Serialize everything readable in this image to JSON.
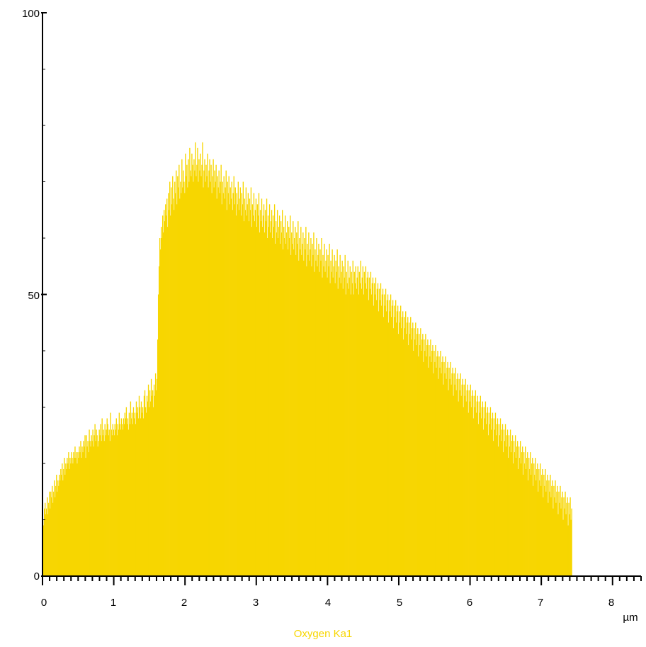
{
  "chart_data": {
    "type": "bar",
    "title": "",
    "xlabel": "µm",
    "ylabel": "",
    "xlim": [
      0,
      8.4
    ],
    "ylim": [
      0,
      100
    ],
    "grid": false,
    "legend_position": "bottom-center",
    "x_tick_labels": [
      "0",
      "1",
      "2",
      "3",
      "4",
      "5",
      "6",
      "7",
      "8"
    ],
    "y_tick_labels": [
      "0",
      "50",
      "100"
    ],
    "x_unit_label": "µm",
    "series": [
      {
        "name": "Oxygen Ka1",
        "color": "#F7D600",
        "x_step": 0.01,
        "values": [
          10,
          9,
          12,
          13,
          11,
          12,
          14,
          11,
          13,
          15,
          12,
          15,
          14,
          16,
          13,
          15,
          17,
          14,
          16,
          18,
          15,
          17,
          16,
          18,
          17,
          19,
          18,
          20,
          17,
          19,
          21,
          18,
          20,
          19,
          21,
          20,
          22,
          19,
          21,
          20,
          22,
          21,
          20,
          22,
          21,
          23,
          21,
          22,
          20,
          22,
          21,
          23,
          22,
          24,
          21,
          23,
          22,
          24,
          23,
          25,
          21,
          25,
          23,
          24,
          22,
          26,
          24,
          23,
          25,
          24,
          26,
          23,
          25,
          27,
          24,
          26,
          25,
          23,
          24,
          26,
          25,
          27,
          24,
          28,
          25,
          26,
          24,
          27,
          25,
          26,
          28,
          27,
          25,
          26,
          24,
          29,
          26,
          25,
          27,
          26,
          25,
          27,
          26,
          28,
          25,
          27,
          26,
          29,
          27,
          26,
          28,
          27,
          26,
          28,
          27,
          29,
          28,
          30,
          27,
          28,
          26,
          29,
          27,
          31,
          28,
          29,
          27,
          30,
          28,
          29,
          27,
          31,
          29,
          30,
          28,
          32,
          30,
          28,
          31,
          29,
          30,
          28,
          32,
          33,
          30,
          29,
          32,
          31,
          34,
          30,
          33,
          31,
          35,
          32,
          33,
          30,
          34,
          32,
          36,
          33,
          35,
          42,
          50,
          55,
          60,
          58,
          62,
          60,
          64,
          61,
          65,
          63,
          66,
          64,
          67,
          62,
          68,
          65,
          70,
          64,
          69,
          66,
          71,
          67,
          65,
          70,
          68,
          72,
          66,
          71,
          69,
          73,
          67,
          70,
          68,
          74,
          69,
          72,
          70,
          68,
          75,
          71,
          73,
          69,
          74,
          70,
          76,
          72,
          71,
          75,
          73,
          70,
          74,
          72,
          77,
          71,
          73,
          76,
          70,
          74,
          72,
          75,
          71,
          73,
          77,
          69,
          72,
          74,
          70,
          73,
          71,
          75,
          69,
          72,
          74,
          70,
          73,
          68,
          71,
          74,
          69,
          72,
          70,
          73,
          67,
          71,
          69,
          72,
          68,
          70,
          73,
          66,
          70,
          68,
          71,
          67,
          69,
          72,
          65,
          70,
          68,
          71,
          66,
          69,
          67,
          70,
          65,
          68,
          71,
          66,
          69,
          64,
          68,
          66,
          70,
          65,
          67,
          69,
          64,
          68,
          66,
          70,
          63,
          67,
          65,
          69,
          64,
          66,
          68,
          63,
          67,
          65,
          69,
          62,
          66,
          64,
          68,
          63,
          65,
          67,
          62,
          66,
          64,
          68,
          61,
          65,
          63,
          67,
          62,
          64,
          66,
          61,
          65,
          63,
          67,
          60,
          64,
          62,
          66,
          61,
          63,
          65,
          60,
          64,
          62,
          66,
          59,
          63,
          61,
          65,
          60,
          62,
          64,
          59,
          63,
          61,
          65,
          58,
          62,
          60,
          64,
          59,
          61,
          63,
          58,
          62,
          60,
          64,
          57,
          61,
          59,
          63,
          58,
          60,
          62,
          57,
          61,
          59,
          63,
          56,
          60,
          58,
          62,
          57,
          59,
          61,
          56,
          60,
          58,
          62,
          55,
          59,
          57,
          61,
          56,
          58,
          60,
          55,
          59,
          57,
          61,
          54,
          58,
          56,
          60,
          55,
          57,
          59,
          54,
          58,
          56,
          60,
          53,
          57,
          55,
          59,
          54,
          56,
          58,
          53,
          57,
          55,
          59,
          52,
          56,
          54,
          58,
          53,
          55,
          57,
          52,
          56,
          54,
          58,
          51,
          55,
          53,
          57,
          52,
          54,
          56,
          51,
          55,
          53,
          57,
          50,
          54,
          52,
          56,
          51,
          53,
          55,
          50,
          54,
          52,
          56,
          50,
          54,
          52,
          55,
          51,
          53,
          55,
          50,
          54,
          52,
          56,
          51,
          53,
          55,
          50,
          54,
          52,
          55,
          51,
          53,
          54,
          49,
          53,
          51,
          54,
          50,
          52,
          53,
          48,
          52,
          50,
          53,
          49,
          51,
          52,
          47,
          51,
          49,
          52,
          48,
          50,
          51,
          46,
          50,
          48,
          51,
          47,
          49,
          50,
          45,
          49,
          47,
          50,
          46,
          48,
          49,
          44,
          48,
          46,
          49,
          45,
          47,
          48,
          43,
          47,
          45,
          48,
          44,
          46,
          47,
          42,
          46,
          44,
          47,
          43,
          45,
          46,
          41,
          45,
          43,
          46,
          42,
          44,
          45,
          40,
          44,
          42,
          45,
          41,
          43,
          44,
          39,
          43,
          41,
          44,
          40,
          42,
          43,
          38,
          42,
          40,
          43,
          39,
          41,
          42,
          37,
          41,
          39,
          42,
          38,
          40,
          41,
          36,
          40,
          38,
          41,
          37,
          39,
          40,
          35,
          39,
          37,
          40,
          36,
          38,
          39,
          34,
          38,
          36,
          39,
          35,
          37,
          38,
          33,
          37,
          35,
          38,
          34,
          36,
          37,
          32,
          36,
          34,
          37,
          33,
          35,
          36,
          31,
          35,
          33,
          36,
          32,
          34,
          35,
          30,
          34,
          32,
          35,
          31,
          33,
          34,
          29,
          33,
          31,
          34,
          30,
          32,
          33,
          28,
          32,
          30,
          33,
          29,
          31,
          32,
          27,
          31,
          29,
          32,
          28,
          30,
          31,
          26,
          30,
          28,
          31,
          27,
          29,
          30,
          25,
          29,
          27,
          30,
          26,
          28,
          29,
          24,
          28,
          26,
          29,
          25,
          27,
          28,
          23,
          27,
          25,
          28,
          24,
          26,
          27,
          22,
          26,
          24,
          27,
          23,
          25,
          26,
          21,
          25,
          23,
          26,
          22,
          24,
          25,
          20,
          24,
          22,
          25,
          21,
          23,
          24,
          19,
          23,
          21,
          24,
          20,
          22,
          23,
          18,
          22,
          20,
          23,
          19,
          21,
          22,
          17,
          21,
          19,
          22,
          18,
          20,
          21,
          16,
          20,
          18,
          21,
          17,
          19,
          20,
          15,
          19,
          17,
          20,
          16,
          18,
          19,
          14,
          18,
          16,
          19,
          15,
          17,
          18,
          13,
          17,
          15,
          18,
          14,
          16,
          17,
          12,
          16,
          14,
          17,
          13,
          15,
          16,
          11,
          15,
          13,
          16,
          12,
          14,
          15,
          10,
          14,
          12,
          15,
          11,
          13,
          14,
          9,
          13,
          11,
          14,
          10,
          12
        ]
      }
    ]
  }
}
